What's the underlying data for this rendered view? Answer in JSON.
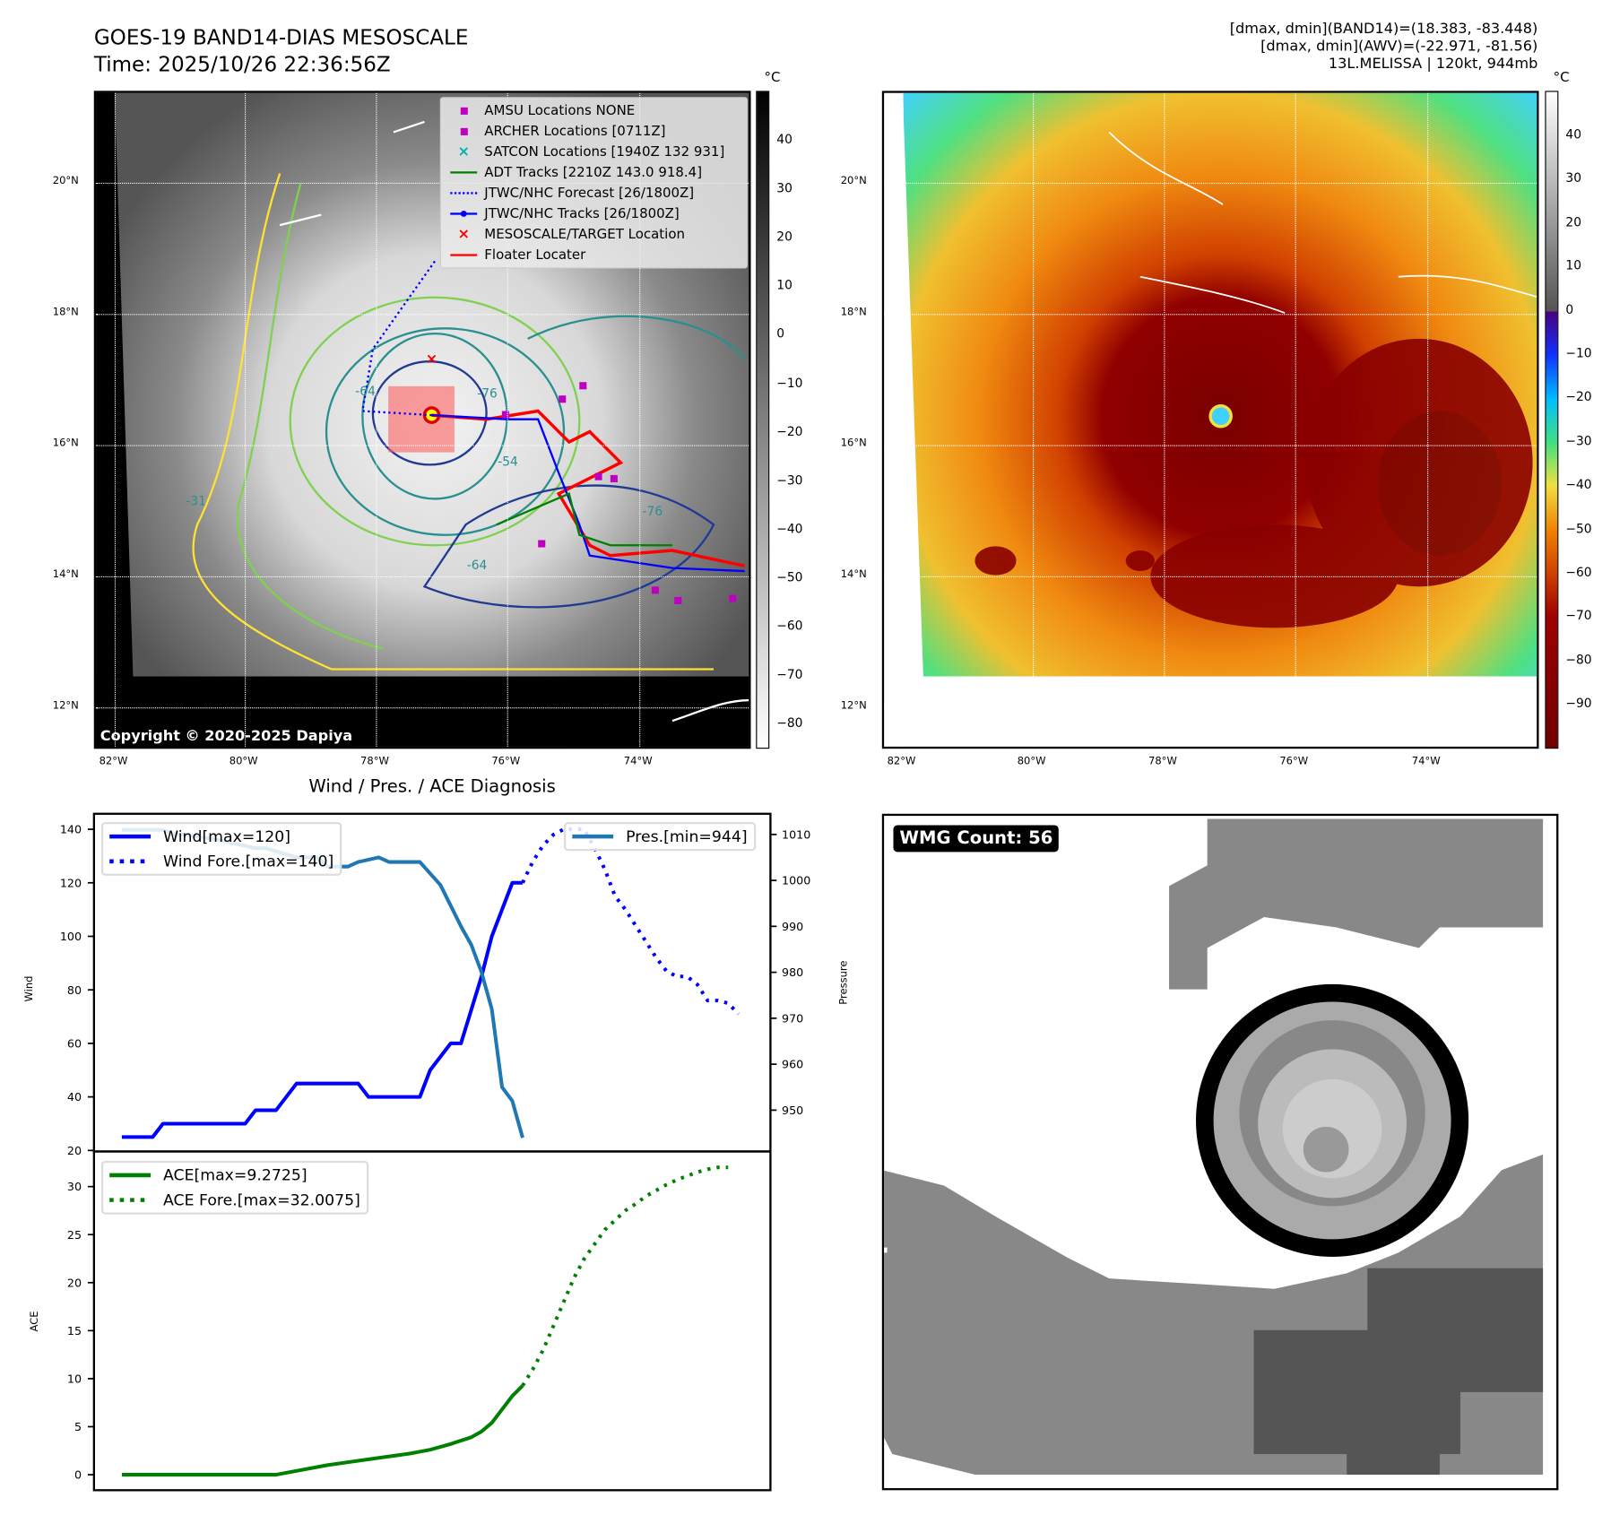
{
  "header": {
    "title": "GOES-19 BAND14-DIAS MESOSCALE",
    "time": "Time: 2025/10/26 22:36:56Z",
    "stats_band14": "[dmax, dmin](BAND14)=(18.383, -83.448)",
    "stats_awv": "[dmax, dmin](AWV)=(-22.971, -81.56)",
    "storm": "13L.MELISSA | 120kt, 944mb"
  },
  "map": {
    "lat_labels": [
      "20°N",
      "18°N",
      "16°N",
      "14°N",
      "12°N"
    ],
    "lon_labels": [
      "82°W",
      "80°W",
      "78°W",
      "76°W",
      "74°W"
    ],
    "copyright": "Copyright © 2020-2025 Dapiya",
    "colorbar_unit": "°C",
    "left_colorbar_ticks": [
      "40",
      "30",
      "20",
      "10",
      "0",
      "−10",
      "−20",
      "−30",
      "−40",
      "−50",
      "−60",
      "−70",
      "−80"
    ],
    "right_colorbar_ticks": [
      "40",
      "30",
      "20",
      "10",
      "0",
      "−10",
      "−20",
      "−30",
      "−40",
      "−50",
      "−60",
      "−70",
      "−80",
      "−90"
    ],
    "contour_labels": [
      "-64",
      "-76",
      "-54",
      "-31",
      "-76",
      "-64"
    ],
    "legend": [
      {
        "label": "AMSU Locations NONE",
        "icon": "magenta-square",
        "color": "#c000c0"
      },
      {
        "label": "ARCHER Locations [0711Z]",
        "icon": "magenta-square",
        "color": "#c000c0"
      },
      {
        "label": "SATCON Locations [1940Z 132 931]",
        "icon": "cyan-x",
        "color": "#00b0b0"
      },
      {
        "label": "ADT Tracks [2210Z 143.0 918.4]",
        "icon": "green-line",
        "color": "#008000"
      },
      {
        "label": "JTWC/NHC Forecast [26/1800Z]",
        "icon": "blue-dotted-line",
        "color": "#0000ff"
      },
      {
        "label": "JTWC/NHC Tracks [26/1800Z]",
        "icon": "blue-line-dot",
        "color": "#0000ff"
      },
      {
        "label": "MESOSCALE/TARGET Location",
        "icon": "red-x",
        "color": "#ff0000"
      },
      {
        "label": "Floater Locater",
        "icon": "red-line",
        "color": "#ff0000"
      }
    ]
  },
  "wmg": {
    "label": "WMG Count: 56"
  },
  "chart_data": [
    {
      "type": "line",
      "title": "Wind / Pres. / ACE Diagnosis",
      "ylabel": "Wind",
      "y2label": "Pressure",
      "ylim": [
        20,
        145
      ],
      "y2lim": [
        943,
        1013
      ],
      "yticks": [
        20,
        40,
        60,
        80,
        100,
        120,
        140
      ],
      "y2ticks": [
        950,
        960,
        970,
        980,
        990,
        1000,
        1010
      ],
      "legend_left": [
        "Wind[max=120]",
        "Wind Fore.[max=140]"
      ],
      "legend_right": [
        "Pres.[min=944]"
      ],
      "series": [
        {
          "name": "Wind[max=120]",
          "color": "#0000ff",
          "style": "solid",
          "axis": "left",
          "x": [
            0,
            3,
            4,
            12,
            13,
            15,
            17,
            23,
            24,
            29,
            30,
            32,
            33,
            35,
            36,
            37,
            38,
            39
          ],
          "y": [
            25,
            25,
            30,
            30,
            35,
            35,
            45,
            45,
            40,
            40,
            50,
            60,
            60,
            85,
            100,
            110,
            120,
            120
          ]
        },
        {
          "name": "Wind Fore.[max=140]",
          "color": "#0000ff",
          "style": "dotted",
          "axis": "left",
          "x": [
            39,
            40,
            41,
            42,
            43,
            44,
            45,
            46,
            47,
            48,
            49,
            50,
            51,
            52,
            53,
            54,
            55,
            56,
            57,
            58,
            59,
            60
          ],
          "y": [
            120,
            128,
            134,
            138,
            140,
            140,
            140,
            133,
            125,
            115,
            110,
            104,
            98,
            92,
            87,
            85,
            85,
            82,
            76,
            76,
            75,
            71
          ]
        },
        {
          "name": "Pres.[min=944]",
          "color": "#1f77b4",
          "style": "solid",
          "axis": "right",
          "x": [
            0,
            4,
            5,
            6,
            9,
            13,
            14,
            17,
            19,
            20,
            22,
            23,
            25,
            26,
            29,
            31,
            33,
            34,
            35,
            36,
            37,
            38,
            39
          ],
          "y": [
            1011,
            1011,
            1010,
            1010,
            1009,
            1007,
            1007,
            1005,
            1005,
            1003,
            1003,
            1004,
            1005,
            1004,
            1004,
            999,
            990,
            986,
            980,
            972,
            955,
            952,
            944
          ]
        }
      ]
    },
    {
      "type": "line",
      "ylabel": "ACE",
      "ylim": [
        -1.5,
        33.5
      ],
      "yticks": [
        0,
        5,
        10,
        15,
        20,
        25,
        30
      ],
      "legend": [
        "ACE[max=9.2725]",
        "ACE Fore.[max=32.0075]"
      ],
      "series": [
        {
          "name": "ACE[max=9.2725]",
          "color": "#008000",
          "style": "solid",
          "x": [
            0,
            15,
            20,
            24,
            28,
            30,
            32,
            34,
            35,
            36,
            37,
            38,
            39
          ],
          "y": [
            0,
            0,
            1,
            1.6,
            2.2,
            2.6,
            3.2,
            3.9,
            4.5,
            5.4,
            6.8,
            8.2,
            9.27
          ]
        },
        {
          "name": "ACE Fore.[max=32.0075]",
          "color": "#008000",
          "style": "dotted",
          "x": [
            39,
            40,
            41,
            42,
            43,
            44,
            45,
            46,
            47,
            48,
            49,
            50,
            51,
            52,
            53,
            54,
            55,
            56,
            57,
            58,
            59
          ],
          "y": [
            9.27,
            11,
            13,
            15.5,
            18,
            20.5,
            22.5,
            24,
            25.5,
            26.5,
            27.5,
            28.2,
            29,
            29.6,
            30.2,
            30.7,
            31.1,
            31.5,
            31.8,
            32.0,
            32.0
          ]
        }
      ]
    }
  ]
}
